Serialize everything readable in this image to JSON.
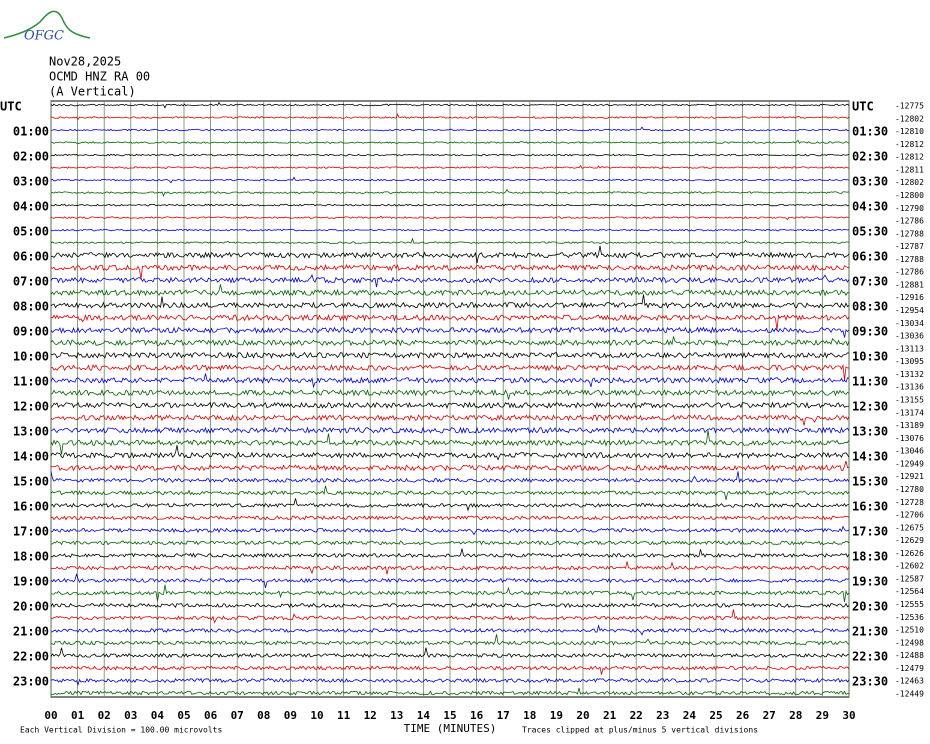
{
  "logo": "OFGC",
  "header": {
    "date": "Nov28,2025",
    "station": "OCMD HNZ RA 00",
    "component": "(A Vertical)"
  },
  "left_labels": [
    "UTC",
    "01:00",
    "02:00",
    "03:00",
    "04:00",
    "05:00",
    "06:00",
    "07:00",
    "08:00",
    "09:00",
    "10:00",
    "11:00",
    "12:00",
    "13:00",
    "14:00",
    "15:00",
    "16:00",
    "17:00",
    "18:00",
    "19:00",
    "20:00",
    "21:00",
    "22:00",
    "23:00"
  ],
  "right_labels": [
    "UTC",
    "01:30",
    "02:30",
    "03:30",
    "04:30",
    "05:30",
    "06:30",
    "07:30",
    "08:30",
    "09:30",
    "10:30",
    "11:30",
    "12:30",
    "13:30",
    "14:30",
    "15:30",
    "16:30",
    "17:30",
    "18:30",
    "19:30",
    "20:30",
    "21:30",
    "22:30",
    "23:30"
  ],
  "offsets": [
    -12775,
    -12802,
    -12810,
    -12812,
    -12812,
    -12811,
    -12802,
    -12800,
    -12790,
    -12786,
    -12788,
    -12787,
    -12788,
    -12786,
    -12881,
    -12916,
    -12954,
    -13034,
    -13036,
    -13113,
    -13095,
    -13132,
    -13136,
    -13155,
    -13174,
    -13189,
    -13076,
    -13046,
    -12949,
    -12921,
    -12780,
    -12728,
    -12706,
    -12675,
    -12629,
    -12626,
    -12602,
    -12587,
    -12564,
    -12555,
    -12536,
    -12510,
    -12498,
    -12488,
    -12479,
    -12463,
    -12449
  ],
  "x_ticks": [
    "00",
    "01",
    "02",
    "03",
    "04",
    "05",
    "06",
    "07",
    "08",
    "09",
    "10",
    "11",
    "12",
    "13",
    "14",
    "15",
    "16",
    "17",
    "18",
    "19",
    "20",
    "21",
    "22",
    "23",
    "24",
    "25",
    "26",
    "27",
    "28",
    "29",
    "30"
  ],
  "x_label": "TIME (MINUTES)",
  "footer_left": "Each Vertical Division =  100.00 microvolts",
  "footer_right": "Traces clipped at plus/minus 5 vertical divisions"
}
